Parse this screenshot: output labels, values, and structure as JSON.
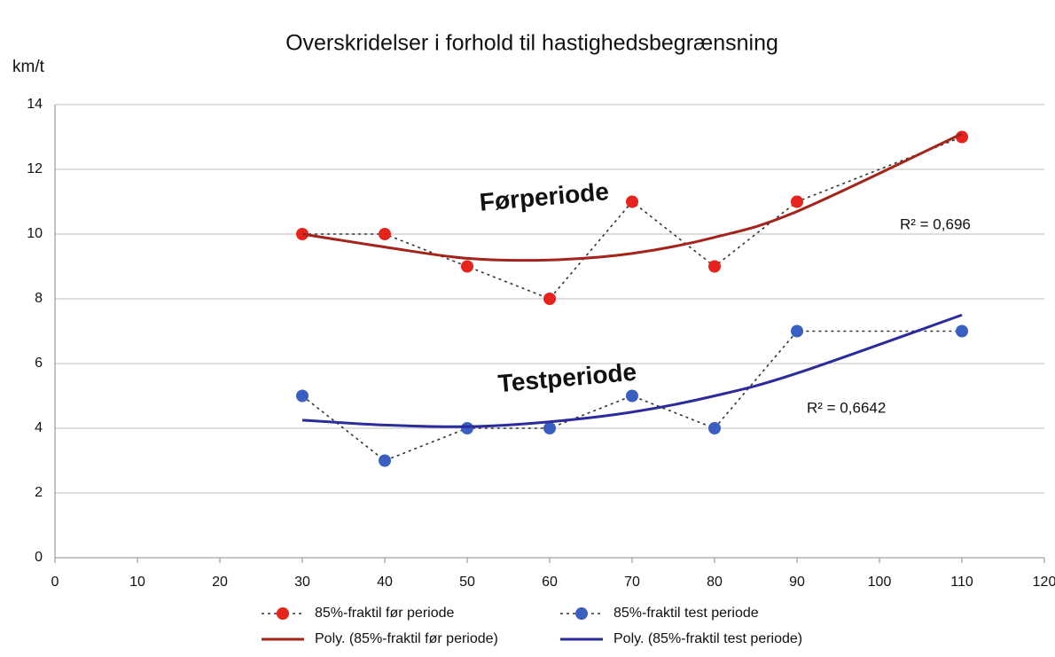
{
  "chart_data": {
    "type": "scatter",
    "title": "Overskridelser i forhold til hastighedsbegrænsning",
    "y_label": "km/t",
    "x": [
      30,
      40,
      50,
      60,
      70,
      80,
      90,
      110
    ],
    "series": [
      {
        "name": "85%-fraktil før periode",
        "color": "#e8221c",
        "values": [
          10,
          10,
          9,
          8,
          11,
          9,
          11,
          13
        ],
        "marker": true,
        "line_style": "dotted"
      },
      {
        "name": "85%-fraktil test periode",
        "color": "#3a5fc0",
        "values": [
          5,
          3,
          4,
          4,
          5,
          4,
          7,
          7
        ],
        "marker": true,
        "line_style": "dotted"
      },
      {
        "name": "Poly. (85%-fraktil før periode)",
        "color": "#a3241a",
        "values": [
          10.0,
          9.6,
          9.25,
          9.2,
          9.4,
          9.9,
          10.7,
          13.1
        ],
        "marker": false,
        "line_style": "solid"
      },
      {
        "name": "Poly. (85%-fraktil test periode)",
        "color": "#2b2b9c",
        "values": [
          4.25,
          4.1,
          4.05,
          4.2,
          4.5,
          5.0,
          5.7,
          7.5
        ],
        "marker": false,
        "line_style": "solid"
      }
    ],
    "annotations": [
      "Førperiode",
      "Testperiode",
      "R² = 0,696",
      "R² = 0,6642"
    ],
    "xlim": [
      0,
      120
    ],
    "xticks": [
      0,
      10,
      20,
      30,
      40,
      50,
      60,
      70,
      80,
      90,
      100,
      110,
      120
    ],
    "ylim": [
      0,
      14
    ],
    "yticks": [
      0,
      2,
      4,
      6,
      8,
      10,
      12,
      14
    ],
    "grid": true
  }
}
